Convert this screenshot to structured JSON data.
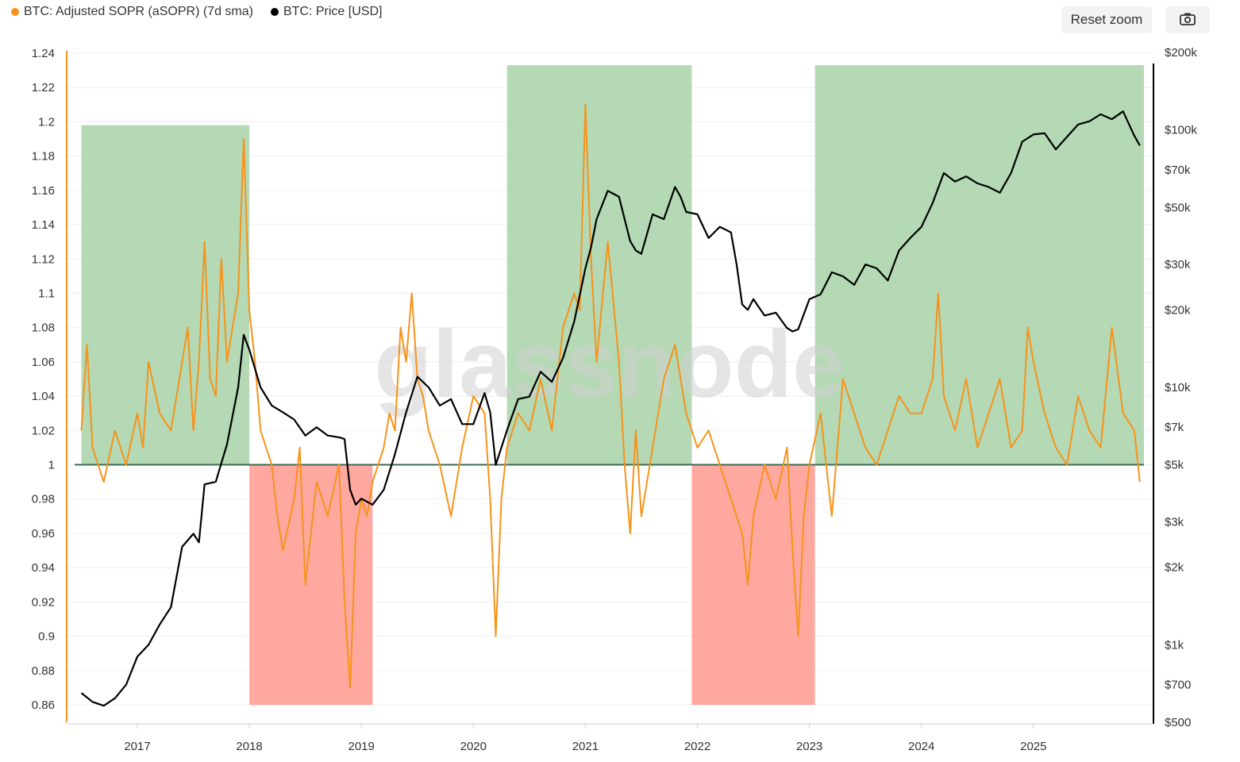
{
  "legend": {
    "sopr_label": "BTC: Adjusted SOPR (aSOPR) (7d sma)",
    "price_label": "BTC: Price [USD]"
  },
  "toolbar": {
    "reset_zoom": "Reset zoom",
    "camera_icon": "camera-icon"
  },
  "watermark": "glassnode",
  "colors": {
    "sopr": "#f7931a",
    "price": "#000000",
    "green_zone": "#b4d9b4",
    "red_zone": "#ffa8a0",
    "baseline": "#3d6b4f"
  },
  "chart_data": {
    "type": "line",
    "x_ticks": [
      "2017",
      "2018",
      "2019",
      "2020",
      "2021",
      "2022",
      "2023",
      "2024",
      "2025"
    ],
    "left_axis": {
      "ticks": [
        "1.24",
        "1.22",
        "1.2",
        "1.18",
        "1.16",
        "1.14",
        "1.12",
        "1.1",
        "1.08",
        "1.06",
        "1.04",
        "1.02",
        "1",
        "0.98",
        "0.96",
        "0.94",
        "0.92",
        "0.9",
        "0.88",
        "0.86"
      ],
      "range": [
        0.85,
        1.24
      ]
    },
    "right_axis": {
      "scale": "log",
      "ticks": [
        "$200k",
        "$100k",
        "$70k",
        "$50k",
        "$30k",
        "$20k",
        "$10k",
        "$7k",
        "$5k",
        "$3k",
        "$2k",
        "$1k",
        "$700",
        "$500"
      ],
      "tick_values": [
        200000,
        100000,
        70000,
        50000,
        30000,
        20000,
        10000,
        7000,
        5000,
        3000,
        2000,
        1000,
        700,
        500
      ],
      "range": [
        500,
        200000
      ]
    },
    "baseline": 1,
    "zones": [
      {
        "type": "green",
        "x_start": 2016.5,
        "x_end": 2018.0,
        "top": 1.198
      },
      {
        "type": "red",
        "x_start": 2018.0,
        "x_end": 2019.1,
        "bottom": 0.86
      },
      {
        "type": "green",
        "x_start": 2020.3,
        "x_end": 2021.95,
        "top": 1.233
      },
      {
        "type": "red",
        "x_start": 2021.95,
        "x_end": 2023.05,
        "bottom": 0.86
      },
      {
        "type": "green",
        "x_start": 2023.05,
        "x_end": 2026.0,
        "top": 1.233
      }
    ],
    "series": [
      {
        "name": "BTC: Adjusted SOPR (aSOPR) (7d sma)",
        "axis": "left",
        "x": [
          2016.5,
          2016.55,
          2016.6,
          2016.65,
          2016.7,
          2016.8,
          2016.9,
          2017.0,
          2017.05,
          2017.1,
          2017.2,
          2017.3,
          2017.35,
          2017.45,
          2017.5,
          2017.55,
          2017.6,
          2017.65,
          2017.7,
          2017.75,
          2017.8,
          2017.85,
          2017.9,
          2017.95,
          2018.0,
          2018.05,
          2018.1,
          2018.2,
          2018.25,
          2018.3,
          2018.4,
          2018.45,
          2018.5,
          2018.55,
          2018.6,
          2018.7,
          2018.8,
          2018.85,
          2018.9,
          2018.95,
          2019.0,
          2019.05,
          2019.1,
          2019.2,
          2019.25,
          2019.3,
          2019.35,
          2019.4,
          2019.45,
          2019.5,
          2019.55,
          2019.6,
          2019.7,
          2019.8,
          2019.9,
          2020.0,
          2020.1,
          2020.15,
          2020.2,
          2020.25,
          2020.3,
          2020.4,
          2020.5,
          2020.6,
          2020.7,
          2020.8,
          2020.9,
          2020.95,
          2021.0,
          2021.05,
          2021.1,
          2021.2,
          2021.3,
          2021.35,
          2021.4,
          2021.45,
          2021.5,
          2021.6,
          2021.7,
          2021.8,
          2021.9,
          2022.0,
          2022.1,
          2022.2,
          2022.3,
          2022.4,
          2022.45,
          2022.5,
          2022.6,
          2022.7,
          2022.8,
          2022.85,
          2022.9,
          2022.95,
          2023.0,
          2023.1,
          2023.2,
          2023.3,
          2023.4,
          2023.5,
          2023.6,
          2023.7,
          2023.8,
          2023.9,
          2024.0,
          2024.1,
          2024.15,
          2024.2,
          2024.3,
          2024.4,
          2024.5,
          2024.6,
          2024.7,
          2024.8,
          2024.9,
          2024.95,
          2025.0,
          2025.1,
          2025.2,
          2025.3,
          2025.4,
          2025.5,
          2025.6,
          2025.7,
          2025.8,
          2025.9,
          2025.95
        ],
        "values": [
          1.02,
          1.07,
          1.01,
          1.0,
          0.99,
          1.02,
          1.0,
          1.03,
          1.01,
          1.06,
          1.03,
          1.02,
          1.04,
          1.08,
          1.02,
          1.06,
          1.13,
          1.05,
          1.04,
          1.12,
          1.06,
          1.08,
          1.1,
          1.19,
          1.09,
          1.06,
          1.02,
          1.0,
          0.97,
          0.95,
          0.98,
          1.01,
          0.93,
          0.96,
          0.99,
          0.97,
          1.0,
          0.92,
          0.87,
          0.96,
          0.98,
          0.97,
          0.99,
          1.01,
          1.03,
          1.02,
          1.08,
          1.06,
          1.1,
          1.05,
          1.04,
          1.02,
          1.0,
          0.97,
          1.01,
          1.04,
          1.03,
          0.98,
          0.9,
          0.98,
          1.01,
          1.03,
          1.02,
          1.05,
          1.02,
          1.08,
          1.1,
          1.09,
          1.21,
          1.12,
          1.06,
          1.13,
          1.06,
          1.0,
          0.96,
          1.02,
          0.97,
          1.01,
          1.05,
          1.07,
          1.03,
          1.01,
          1.02,
          1.0,
          0.98,
          0.96,
          0.93,
          0.97,
          1.0,
          0.98,
          1.01,
          0.95,
          0.9,
          0.97,
          1.0,
          1.03,
          0.97,
          1.05,
          1.03,
          1.01,
          1.0,
          1.02,
          1.04,
          1.03,
          1.03,
          1.05,
          1.1,
          1.04,
          1.02,
          1.05,
          1.01,
          1.03,
          1.05,
          1.01,
          1.02,
          1.08,
          1.06,
          1.03,
          1.01,
          1.0,
          1.04,
          1.02,
          1.01,
          1.08,
          1.03,
          1.02,
          0.99
        ]
      },
      {
        "name": "BTC: Price [USD]",
        "axis": "right",
        "x": [
          2016.5,
          2016.6,
          2016.7,
          2016.8,
          2016.9,
          2017.0,
          2017.1,
          2017.2,
          2017.3,
          2017.4,
          2017.5,
          2017.55,
          2017.6,
          2017.7,
          2017.8,
          2017.9,
          2017.95,
          2018.0,
          2018.1,
          2018.2,
          2018.3,
          2018.4,
          2018.5,
          2018.6,
          2018.7,
          2018.8,
          2018.85,
          2018.9,
          2018.95,
          2019.0,
          2019.1,
          2019.2,
          2019.3,
          2019.4,
          2019.5,
          2019.6,
          2019.7,
          2019.8,
          2019.9,
          2020.0,
          2020.1,
          2020.15,
          2020.2,
          2020.3,
          2020.4,
          2020.5,
          2020.6,
          2020.7,
          2020.8,
          2020.9,
          2021.0,
          2021.05,
          2021.1,
          2021.2,
          2021.3,
          2021.4,
          2021.45,
          2021.5,
          2021.6,
          2021.7,
          2021.8,
          2021.85,
          2021.9,
          2022.0,
          2022.1,
          2022.2,
          2022.3,
          2022.35,
          2022.4,
          2022.45,
          2022.5,
          2022.6,
          2022.7,
          2022.8,
          2022.85,
          2022.9,
          2023.0,
          2023.1,
          2023.2,
          2023.3,
          2023.4,
          2023.5,
          2023.6,
          2023.7,
          2023.8,
          2023.9,
          2024.0,
          2024.1,
          2024.2,
          2024.3,
          2024.4,
          2024.5,
          2024.6,
          2024.7,
          2024.8,
          2024.9,
          2025.0,
          2025.1,
          2025.2,
          2025.3,
          2025.4,
          2025.5,
          2025.6,
          2025.7,
          2025.8,
          2025.9,
          2025.95
        ],
        "values": [
          650,
          600,
          580,
          620,
          700,
          900,
          1000,
          1200,
          1400,
          2400,
          2700,
          2500,
          4200,
          4300,
          6000,
          10000,
          16000,
          14000,
          10000,
          8500,
          8000,
          7500,
          6500,
          7000,
          6500,
          6400,
          6300,
          4000,
          3500,
          3700,
          3500,
          4000,
          5500,
          8000,
          11000,
          10000,
          8500,
          9000,
          7200,
          7200,
          9500,
          8000,
          5000,
          6800,
          9000,
          9200,
          11500,
          10500,
          13000,
          18000,
          29000,
          35000,
          45000,
          58000,
          55000,
          37000,
          34000,
          33000,
          47000,
          45000,
          60000,
          55000,
          48000,
          47000,
          38000,
          42000,
          40000,
          30000,
          21000,
          20000,
          22000,
          19000,
          19500,
          17000,
          16500,
          16800,
          22000,
          23000,
          28000,
          27000,
          25000,
          30000,
          29000,
          26000,
          34000,
          38000,
          42000,
          52000,
          68000,
          63000,
          66000,
          62000,
          60000,
          57000,
          68000,
          90000,
          96000,
          97000,
          84000,
          94000,
          105000,
          108000,
          115000,
          110000,
          118000,
          95000,
          87000
        ]
      }
    ]
  }
}
